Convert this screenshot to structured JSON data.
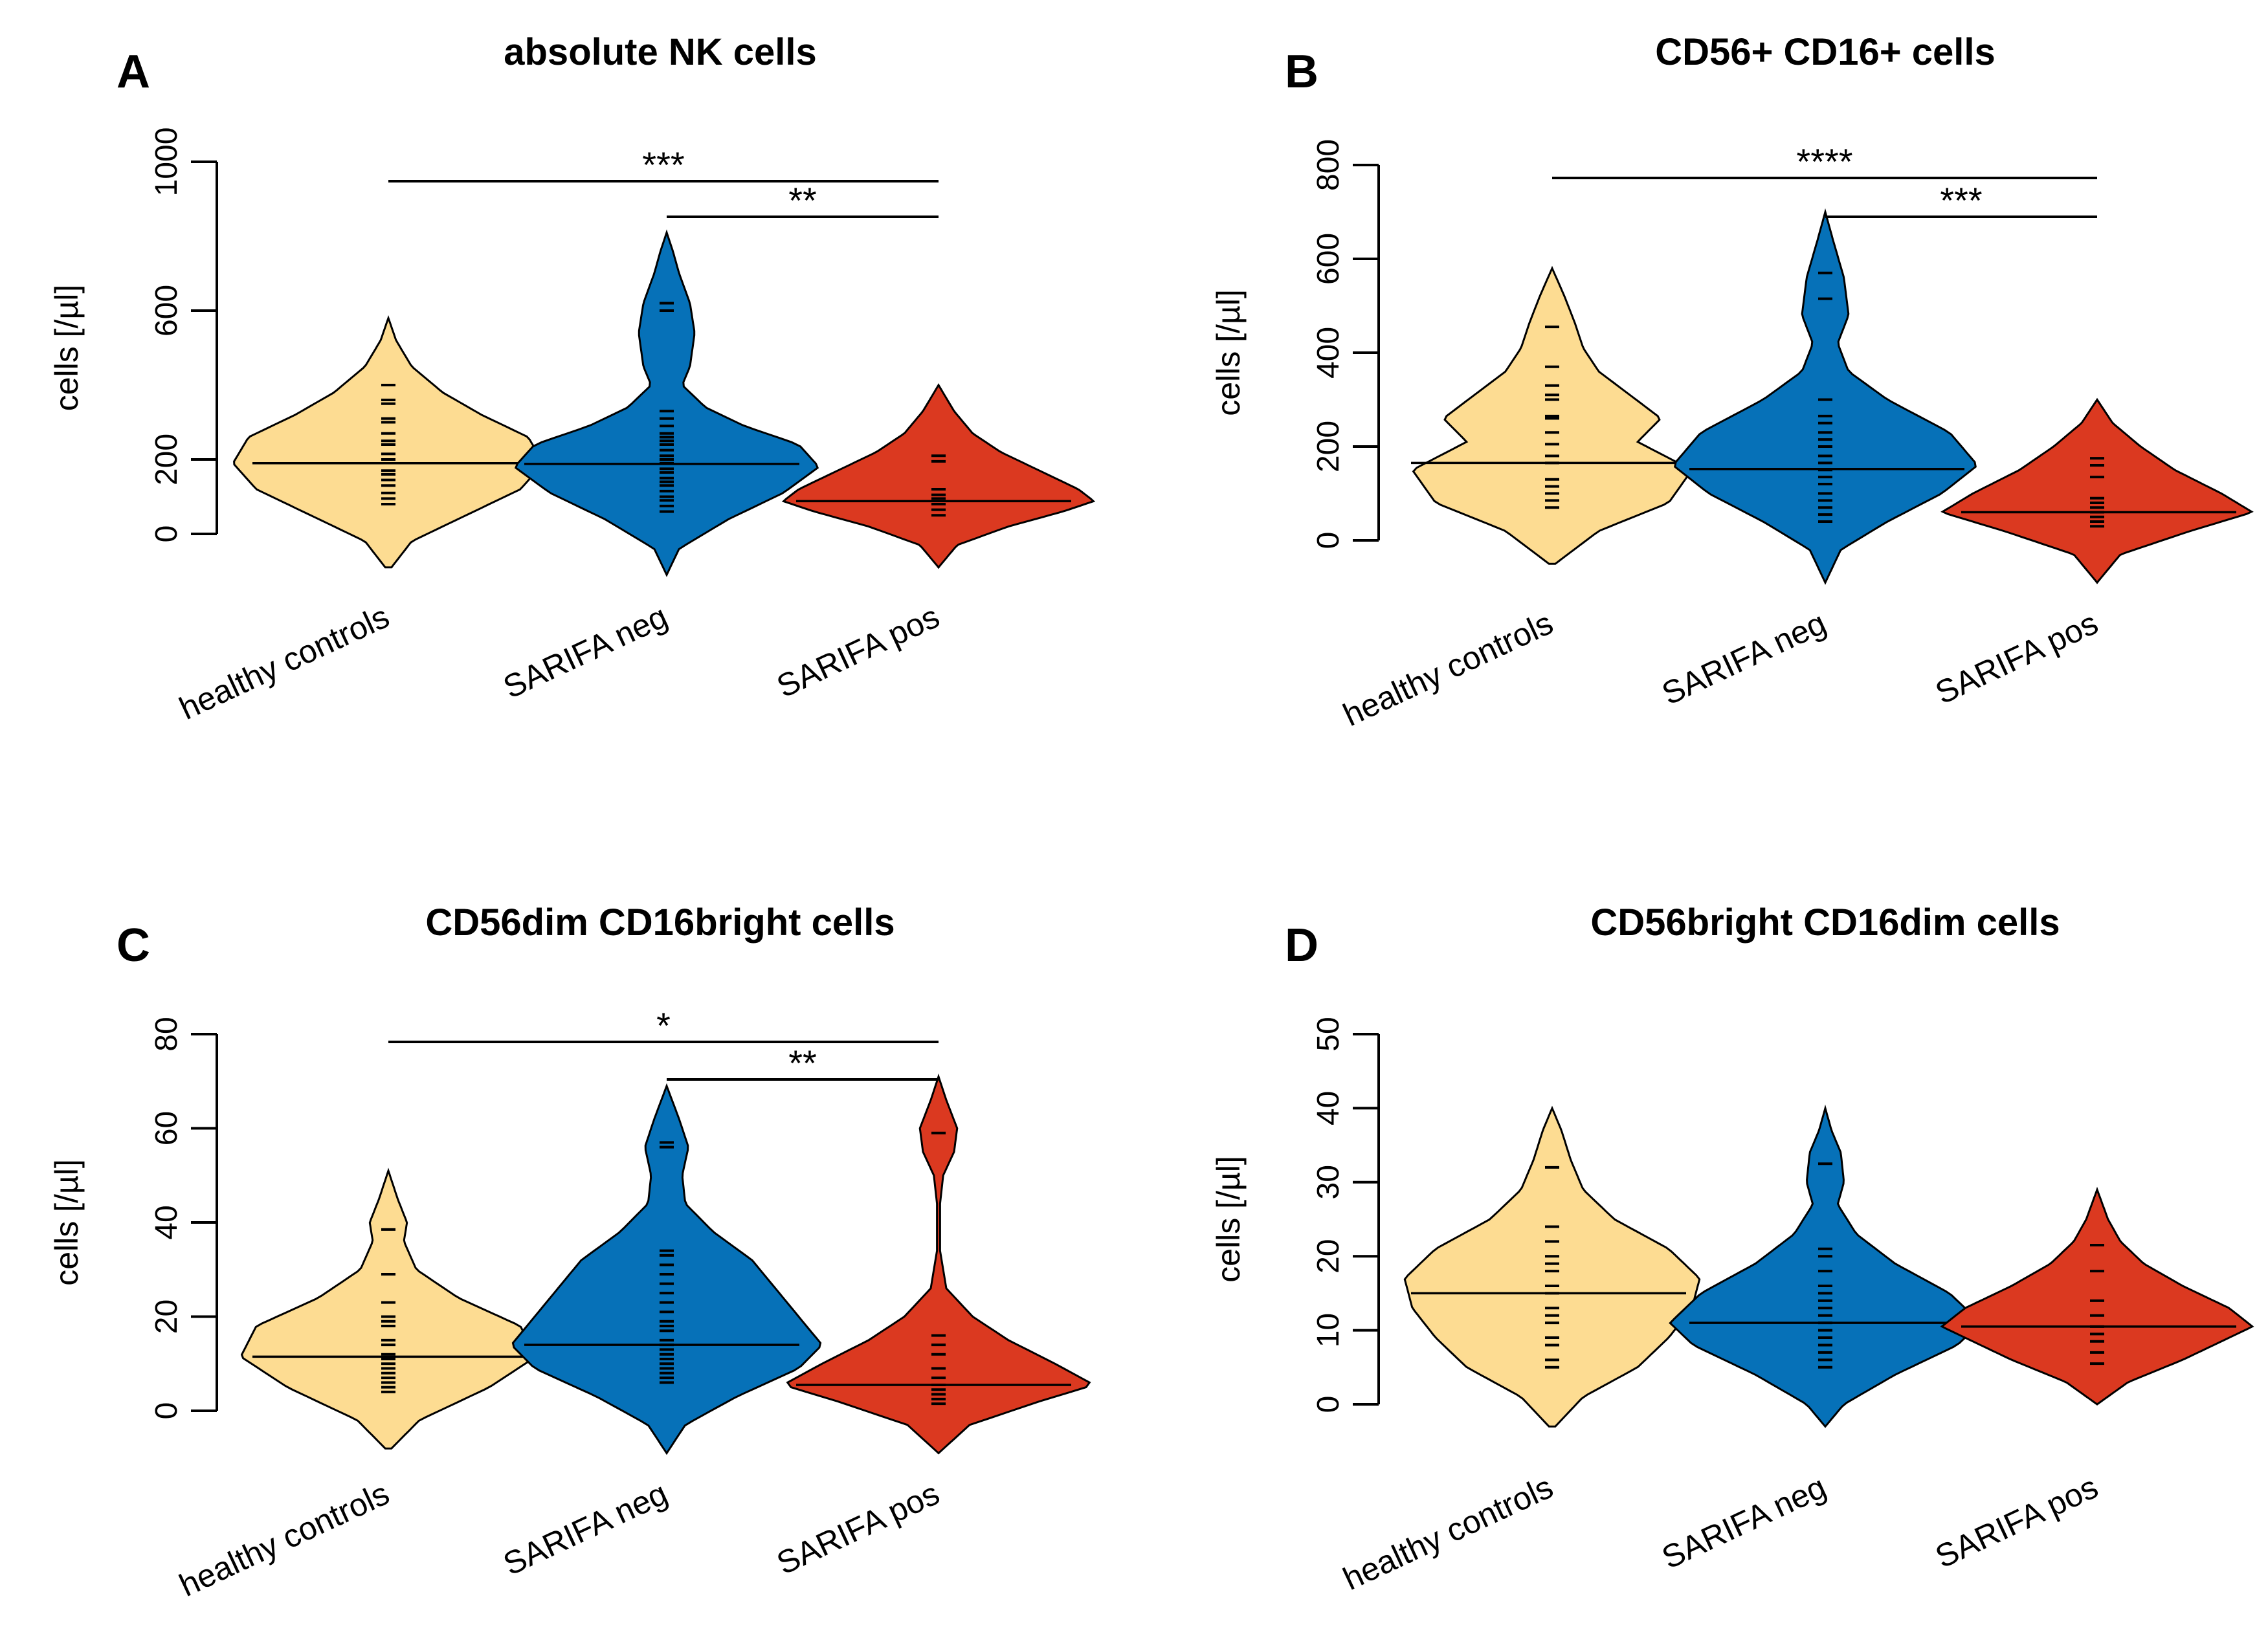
{
  "colors": {
    "healthy controls": "#FDDC92",
    "SARIFA neg": "#0671B8",
    "SARIFA pos": "#DB3920",
    "outline": "#000000"
  },
  "chart_data": [
    {
      "panel": "A",
      "type": "beanplot",
      "title": "absolute NK cells",
      "ylabel": "cells [/µl]",
      "ylim": [
        0,
        1000
      ],
      "yticks": [
        0,
        200,
        600,
        1000
      ],
      "categories": [
        "healthy controls",
        "SARIFA neg",
        "SARIFA pos"
      ],
      "groups": [
        {
          "name": "healthy controls",
          "median": 190,
          "min": -90,
          "max": 580,
          "density": [
            [
              -90,
              0.02
            ],
            [
              -20,
              0.15
            ],
            [
              60,
              0.55
            ],
            [
              120,
              0.85
            ],
            [
              190,
              1.0
            ],
            [
              260,
              0.9
            ],
            [
              320,
              0.6
            ],
            [
              380,
              0.35
            ],
            [
              450,
              0.15
            ],
            [
              520,
              0.05
            ],
            [
              580,
              0.0
            ]
          ],
          "points": [
            80,
            95,
            110,
            130,
            145,
            160,
            170,
            200,
            215,
            240,
            250,
            270,
            300,
            310,
            350,
            360,
            400
          ]
        },
        {
          "name": "SARIFA neg",
          "median": 188,
          "min": -110,
          "max": 810,
          "density": [
            [
              -110,
              0.0
            ],
            [
              -40,
              0.08
            ],
            [
              40,
              0.4
            ],
            [
              110,
              0.75
            ],
            [
              180,
              0.98
            ],
            [
              240,
              0.85
            ],
            [
              290,
              0.5
            ],
            [
              340,
              0.25
            ],
            [
              400,
              0.1
            ],
            [
              450,
              0.15
            ],
            [
              540,
              0.18
            ],
            [
              620,
              0.15
            ],
            [
              700,
              0.08
            ],
            [
              760,
              0.04
            ],
            [
              810,
              0.0
            ]
          ],
          "points": [
            60,
            75,
            90,
            100,
            115,
            130,
            140,
            150,
            165,
            175,
            190,
            200,
            210,
            225,
            240,
            250,
            260,
            270,
            290,
            310,
            330,
            600,
            620
          ]
        },
        {
          "name": "SARIFA pos",
          "median": 88,
          "min": -90,
          "max": 400,
          "density": [
            [
              -90,
              0.0
            ],
            [
              -30,
              0.12
            ],
            [
              20,
              0.45
            ],
            [
              60,
              0.8
            ],
            [
              88,
              1.0
            ],
            [
              120,
              0.9
            ],
            [
              170,
              0.65
            ],
            [
              220,
              0.4
            ],
            [
              270,
              0.22
            ],
            [
              330,
              0.1
            ],
            [
              400,
              0.0
            ]
          ],
          "points": [
            50,
            65,
            80,
            95,
            105,
            120,
            195,
            210
          ]
        }
      ],
      "comparisons": [
        {
          "from": "healthy controls",
          "to": "SARIFA pos",
          "label": "***"
        },
        {
          "from": "SARIFA neg",
          "to": "SARIFA pos",
          "label": "**"
        }
      ]
    },
    {
      "panel": "B",
      "type": "beanplot",
      "title": "CD56+ CD16+ cells",
      "ylabel": "cells [/µl]",
      "ylim": [
        0,
        800
      ],
      "yticks": [
        0,
        200,
        400,
        600,
        800
      ],
      "categories": [
        "healthy controls",
        "SARIFA neg",
        "SARIFA pos"
      ],
      "groups": [
        {
          "name": "healthy controls",
          "median": 165,
          "min": -50,
          "max": 580,
          "density": [
            [
              -50,
              0.02
            ],
            [
              20,
              0.3
            ],
            [
              80,
              0.75
            ],
            [
              150,
              0.9
            ],
            [
              210,
              0.55
            ],
            [
              260,
              0.7
            ],
            [
              310,
              0.5
            ],
            [
              360,
              0.3
            ],
            [
              410,
              0.2
            ],
            [
              460,
              0.15
            ],
            [
              520,
              0.08
            ],
            [
              580,
              0.0
            ]
          ],
          "points": [
            70,
            85,
            100,
            115,
            130,
            165,
            180,
            205,
            230,
            260,
            265,
            300,
            310,
            330,
            370,
            455
          ]
        },
        {
          "name": "SARIFA neg",
          "median": 152,
          "min": -90,
          "max": 700,
          "density": [
            [
              -90,
              0.0
            ],
            [
              -20,
              0.1
            ],
            [
              40,
              0.4
            ],
            [
              100,
              0.75
            ],
            [
              160,
              0.98
            ],
            [
              230,
              0.8
            ],
            [
              300,
              0.4
            ],
            [
              360,
              0.15
            ],
            [
              420,
              0.08
            ],
            [
              480,
              0.15
            ],
            [
              560,
              0.12
            ],
            [
              640,
              0.05
            ],
            [
              700,
              0.0
            ]
          ],
          "points": [
            40,
            55,
            70,
            85,
            100,
            120,
            135,
            150,
            165,
            180,
            200,
            215,
            230,
            250,
            265,
            300,
            515,
            570
          ]
        },
        {
          "name": "SARIFA pos",
          "median": 60,
          "min": -90,
          "max": 300,
          "density": [
            [
              -90,
              0.0
            ],
            [
              -30,
              0.15
            ],
            [
              20,
              0.6
            ],
            [
              60,
              1.0
            ],
            [
              100,
              0.8
            ],
            [
              150,
              0.5
            ],
            [
              200,
              0.28
            ],
            [
              250,
              0.1
            ],
            [
              300,
              0.0
            ]
          ],
          "points": [
            30,
            40,
            50,
            60,
            70,
            80,
            90,
            135,
            160,
            175
          ]
        }
      ],
      "comparisons": [
        {
          "from": "healthy controls",
          "to": "SARIFA pos",
          "label": "****"
        },
        {
          "from": "SARIFA neg",
          "to": "SARIFA pos",
          "label": "***"
        }
      ]
    },
    {
      "panel": "C",
      "type": "beanplot",
      "title": "CD56dim CD16bright cells",
      "ylabel": "cells [/µl]",
      "ylim": [
        0,
        80
      ],
      "yticks": [
        0,
        20,
        40,
        60,
        80
      ],
      "categories": [
        "healthy controls",
        "SARIFA neg",
        "SARIFA pos"
      ],
      "groups": [
        {
          "name": "healthy controls",
          "median": 11.5,
          "min": -8,
          "max": 51,
          "density": [
            [
              -8,
              0.02
            ],
            [
              -2,
              0.2
            ],
            [
              5,
              0.65
            ],
            [
              11.5,
              0.95
            ],
            [
              18,
              0.85
            ],
            [
              24,
              0.45
            ],
            [
              30,
              0.18
            ],
            [
              36,
              0.1
            ],
            [
              40,
              0.12
            ],
            [
              45,
              0.06
            ],
            [
              51,
              0.0
            ]
          ],
          "points": [
            4,
            5,
            6,
            7,
            8,
            9,
            10,
            11,
            12,
            14,
            15,
            18,
            19,
            20,
            23,
            29,
            38.5
          ]
        },
        {
          "name": "SARIFA neg",
          "median": 14,
          "min": -9,
          "max": 69,
          "density": [
            [
              -9,
              0.0
            ],
            [
              -3,
              0.12
            ],
            [
              3,
              0.45
            ],
            [
              9,
              0.85
            ],
            [
              14,
              1.0
            ],
            [
              20,
              0.85
            ],
            [
              26,
              0.7
            ],
            [
              32,
              0.55
            ],
            [
              38,
              0.3
            ],
            [
              44,
              0.12
            ],
            [
              50,
              0.1
            ],
            [
              56,
              0.14
            ],
            [
              62,
              0.08
            ],
            [
              69,
              0.0
            ]
          ],
          "points": [
            6,
            7,
            8,
            9,
            10,
            11,
            12,
            13,
            14,
            15,
            17,
            18,
            19,
            21,
            23,
            25,
            27,
            29,
            31,
            33,
            34,
            56,
            57
          ]
        },
        {
          "name": "SARIFA pos",
          "median": 5.5,
          "min": -9,
          "max": 71,
          "density": [
            [
              -9,
              0.0
            ],
            [
              -3,
              0.2
            ],
            [
              2,
              0.65
            ],
            [
              5.5,
              1.0
            ],
            [
              10,
              0.75
            ],
            [
              15,
              0.45
            ],
            [
              20,
              0.22
            ],
            [
              26,
              0.05
            ],
            [
              34,
              0.01
            ],
            [
              44,
              0.01
            ],
            [
              50,
              0.03
            ],
            [
              55,
              0.1
            ],
            [
              60,
              0.12
            ],
            [
              66,
              0.05
            ],
            [
              71,
              0.0
            ]
          ],
          "points": [
            1.5,
            2.5,
            3.5,
            4.5,
            5.5,
            7,
            9,
            12,
            14,
            16,
            59
          ]
        }
      ],
      "comparisons": [
        {
          "from": "healthy controls",
          "to": "SARIFA pos",
          "label": "*"
        },
        {
          "from": "SARIFA neg",
          "to": "SARIFA pos",
          "label": "**"
        }
      ]
    },
    {
      "panel": "D",
      "type": "beanplot",
      "title": "CD56bright CD16dim cells",
      "ylabel": "cells [/µl]",
      "ylim": [
        0,
        50
      ],
      "yticks": [
        0,
        10,
        20,
        30,
        40,
        50
      ],
      "categories": [
        "healthy controls",
        "SARIFA neg",
        "SARIFA pos"
      ],
      "groups": [
        {
          "name": "healthy controls",
          "median": 15,
          "min": -3,
          "max": 40,
          "density": [
            [
              -3,
              0.02
            ],
            [
              1,
              0.2
            ],
            [
              5,
              0.55
            ],
            [
              9,
              0.75
            ],
            [
              13,
              0.9
            ],
            [
              17,
              0.95
            ],
            [
              21,
              0.75
            ],
            [
              25,
              0.4
            ],
            [
              29,
              0.2
            ],
            [
              33,
              0.12
            ],
            [
              37,
              0.06
            ],
            [
              40,
              0.0
            ]
          ],
          "points": [
            5,
            6,
            8,
            9,
            11,
            12,
            13,
            15,
            16,
            18,
            19,
            20,
            22,
            24,
            32
          ]
        },
        {
          "name": "SARIFA neg",
          "median": 11,
          "min": -3,
          "max": 40,
          "density": [
            [
              -3,
              0.0
            ],
            [
              0,
              0.12
            ],
            [
              4,
              0.45
            ],
            [
              8,
              0.85
            ],
            [
              11,
              1.0
            ],
            [
              15,
              0.8
            ],
            [
              19,
              0.45
            ],
            [
              23,
              0.2
            ],
            [
              27,
              0.08
            ],
            [
              30,
              0.12
            ],
            [
              34,
              0.1
            ],
            [
              37,
              0.04
            ],
            [
              40,
              0.0
            ]
          ],
          "points": [
            5,
            6,
            7,
            8,
            9,
            10,
            11,
            12,
            13,
            14,
            15,
            16,
            18,
            20,
            21,
            32.5
          ]
        },
        {
          "name": "SARIFA pos",
          "median": 10.5,
          "min": 0,
          "max": 29,
          "density": [
            [
              0,
              0.0
            ],
            [
              3,
              0.2
            ],
            [
              6,
              0.55
            ],
            [
              9,
              0.85
            ],
            [
              10.5,
              1.0
            ],
            [
              13,
              0.85
            ],
            [
              16,
              0.55
            ],
            [
              19,
              0.3
            ],
            [
              22,
              0.15
            ],
            [
              25,
              0.07
            ],
            [
              29,
              0.0
            ]
          ],
          "points": [
            5.5,
            7,
            8.5,
            9.5,
            10.5,
            12,
            14,
            18,
            21.5
          ]
        }
      ],
      "comparisons": []
    }
  ]
}
